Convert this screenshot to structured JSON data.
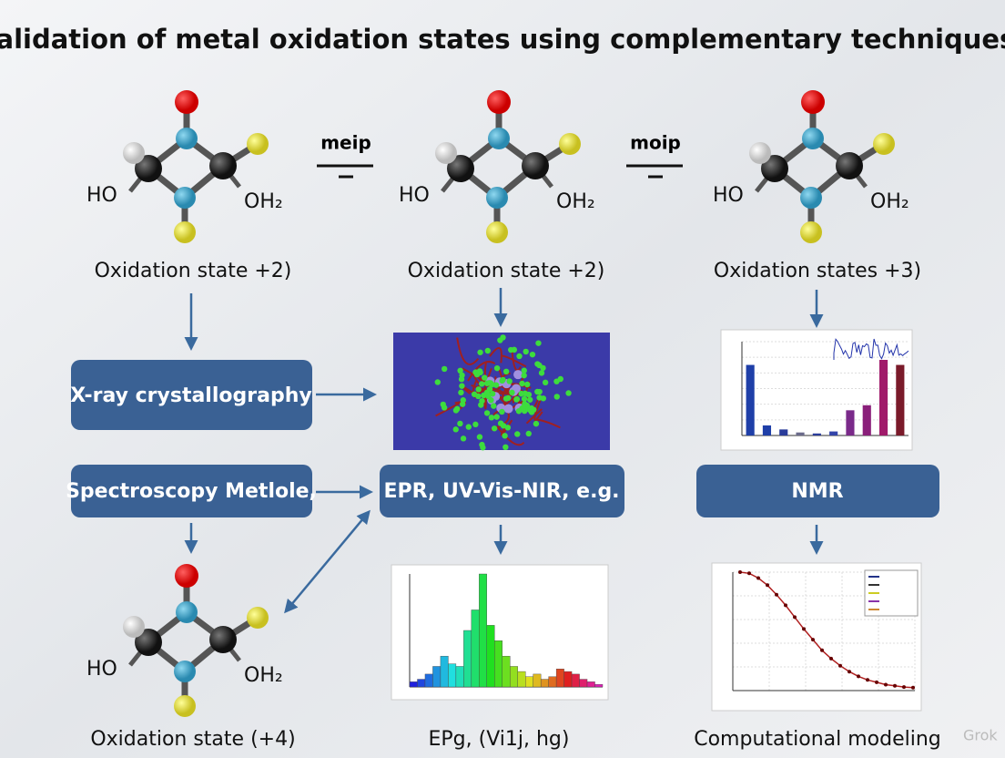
{
  "header": {
    "title": "Validation of metal oxidation states using complementary techniques"
  },
  "molecules": [
    {
      "left_label": "HO",
      "right_label": "OH₂"
    },
    {
      "left_label": "HO",
      "right_label": "OH₂"
    },
    {
      "left_label": "HO",
      "right_label": "OH₂"
    },
    {
      "left_label": "HO",
      "right_label": "OH₂"
    }
  ],
  "connectors": [
    "meip",
    "moip"
  ],
  "captions": {
    "top": [
      "Oxidation state +2)",
      "Oxidation state +2)",
      "Oxidation states +3)"
    ],
    "bottom": [
      "Oxidation state (+4)",
      "EPg, (Vi1j, hg)",
      "Computational modeling"
    ]
  },
  "boxes": [
    "X-ray crystallography",
    "Spectroscopy Metlole,",
    "EPR, UV-Vis-NIR, e.g.",
    "NMR"
  ],
  "nmr_chart": {
    "values": [
      7,
      1,
      0.6,
      0.3,
      0.2,
      0.4,
      2.5,
      3,
      7.5,
      7
    ],
    "colors": [
      "#1f3fa8",
      "#1f3fa8",
      "#2a3c9a",
      "#6a6a8a",
      "#2a3c9a",
      "#3344aa",
      "#7a2a8a",
      "#8a1f7a",
      "#a01a6a",
      "#7a1a2a"
    ]
  },
  "epr_chart": {
    "values": [
      2,
      3,
      5,
      8,
      12,
      9,
      8,
      22,
      30,
      44,
      24,
      18,
      12,
      8,
      6,
      4,
      5,
      3,
      4,
      7,
      6,
      5,
      3,
      2,
      1
    ]
  },
  "model_curve": {
    "values": [
      10,
      9.9,
      9.5,
      8.9,
      8.1,
      7.2,
      6.2,
      5.2,
      4.3,
      3.4,
      2.7,
      2.1,
      1.6,
      1.2,
      0.9,
      0.7,
      0.5,
      0.4,
      0.3,
      0.25
    ]
  },
  "watermark": "Grok"
}
